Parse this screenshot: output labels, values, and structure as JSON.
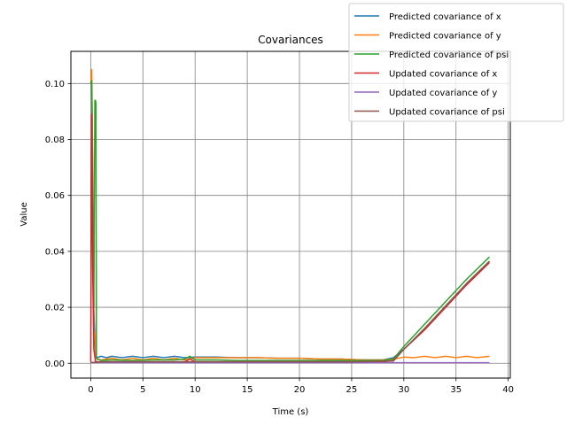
{
  "chart_data": {
    "type": "line",
    "title": "Covariances",
    "xlabel": "Time (s)",
    "ylabel": "Value",
    "xlim": [
      -1.9,
      40.2
    ],
    "ylim": [
      -0.0053,
      0.1115
    ],
    "xticks": [
      0,
      5,
      10,
      15,
      20,
      25,
      30,
      35,
      40
    ],
    "xtick_labels": [
      "0",
      "5",
      "10",
      "15",
      "20",
      "25",
      "30",
      "35",
      "40"
    ],
    "yticks": [
      0.0,
      0.02,
      0.04,
      0.06,
      0.08,
      0.1
    ],
    "ytick_labels": [
      "0.00",
      "0.02",
      "0.04",
      "0.06",
      "0.08",
      "0.10"
    ],
    "grid": true,
    "legend_position": "top-right",
    "series": [
      {
        "name": "Predicted covariance of x",
        "color": "#1f77b4",
        "x": [
          0,
          0.1,
          0.2,
          0.3,
          0.45,
          0.6,
          1.0,
          1.5,
          2.0,
          3.0,
          4.0,
          5.0,
          6.0,
          7.0,
          8.0,
          9.0,
          10.0,
          12.0,
          14.0,
          16.0,
          18.0,
          20.0,
          22.0,
          24.0,
          26.0,
          28.0,
          29.0,
          30.0,
          32.0,
          34.0,
          36.0,
          38.2
        ],
        "y": [
          0.1,
          0.1,
          0.06,
          0.02,
          0.003,
          0.002,
          0.0025,
          0.002,
          0.0025,
          0.002,
          0.0025,
          0.002,
          0.0025,
          0.002,
          0.0025,
          0.002,
          0.0022,
          0.0022,
          0.002,
          0.002,
          0.0018,
          0.0018,
          0.0015,
          0.0015,
          0.0012,
          0.0012,
          0.002,
          0.005,
          0.012,
          0.02,
          0.028,
          0.036
        ]
      },
      {
        "name": "Predicted covariance of y",
        "color": "#ff7f0e",
        "x": [
          0,
          0.1,
          0.2,
          0.3,
          0.4,
          0.5,
          0.6,
          1.0,
          2.0,
          3.0,
          4.0,
          5.0,
          6.0,
          7.0,
          8.0,
          9.0,
          10.0,
          12.0,
          14.0,
          16.0,
          18.0,
          20.0,
          22.0,
          24.0,
          26.0,
          28.0,
          29.5,
          30.0,
          31.0,
          32.0,
          33.0,
          34.0,
          35.0,
          36.0,
          37.0,
          38.2
        ],
        "y": [
          0.1,
          0.105,
          0.07,
          0.01,
          0.011,
          0.002,
          0.0015,
          0.0012,
          0.0018,
          0.0012,
          0.0018,
          0.0012,
          0.0018,
          0.0012,
          0.0018,
          0.0012,
          0.002,
          0.002,
          0.002,
          0.002,
          0.0018,
          0.0018,
          0.0015,
          0.0015,
          0.0012,
          0.0012,
          0.0018,
          0.0022,
          0.002,
          0.0025,
          0.002,
          0.0025,
          0.002,
          0.0025,
          0.002,
          0.0025
        ]
      },
      {
        "name": "Predicted covariance of psi",
        "color": "#2ca02c",
        "x": [
          0,
          0.1,
          0.2,
          0.3,
          0.4,
          0.45,
          0.5,
          0.55,
          0.6,
          1.0,
          2.0,
          4.0,
          6.0,
          8.0,
          9.0,
          9.5,
          10.0,
          12.0,
          14.0,
          16.0,
          18.0,
          20.0,
          22.0,
          24.0,
          26.0,
          28.0,
          29.0,
          30.0,
          32.0,
          34.0,
          36.0,
          38.2
        ],
        "y": [
          0.1,
          0.101,
          0.06,
          0.02,
          0.094,
          0.094,
          0.093,
          0.002,
          0.0015,
          0.001,
          0.0012,
          0.001,
          0.0012,
          0.0012,
          0.0015,
          0.0025,
          0.0012,
          0.0012,
          0.001,
          0.001,
          0.001,
          0.001,
          0.001,
          0.001,
          0.001,
          0.001,
          0.0015,
          0.006,
          0.014,
          0.022,
          0.03,
          0.038
        ]
      },
      {
        "name": "Updated covariance of x",
        "color": "#d62728",
        "x": [
          0,
          0.1,
          0.2,
          0.3,
          0.45,
          0.6,
          1.0,
          2.0,
          4.0,
          6.0,
          8.0,
          9.0,
          9.5,
          10.0,
          12.0,
          14.0,
          16.0,
          18.0,
          20.0,
          22.0,
          24.0,
          26.0,
          28.0,
          29.0,
          30.0,
          32.0,
          34.0,
          36.0,
          38.2
        ],
        "y": [
          0.0005,
          0.089,
          0.03,
          0.005,
          0.0008,
          0.0005,
          0.0005,
          0.0005,
          0.0005,
          0.0005,
          0.0005,
          0.0005,
          0.0015,
          0.0005,
          0.0005,
          0.0005,
          0.0005,
          0.0005,
          0.0005,
          0.0005,
          0.0005,
          0.0005,
          0.0005,
          0.001,
          0.005,
          0.012,
          0.02,
          0.028,
          0.036
        ]
      },
      {
        "name": "Updated covariance of y",
        "color": "#9467bd",
        "x": [
          0,
          1,
          5,
          10,
          15,
          20,
          25,
          30,
          35,
          38.2
        ],
        "y": [
          0.0002,
          0.0002,
          0.0002,
          0.0002,
          0.0002,
          0.0002,
          0.0002,
          0.0002,
          0.0002,
          0.0002
        ]
      },
      {
        "name": "Updated covariance of psi",
        "color": "#8c564b",
        "x": [
          0,
          0.5,
          1.0,
          5,
          10,
          15,
          20,
          25,
          29.0,
          30.0,
          32.0,
          34.0,
          36.0,
          38.2
        ],
        "y": [
          0.0003,
          0.0003,
          0.0005,
          0.0005,
          0.0005,
          0.0005,
          0.0005,
          0.0005,
          0.0008,
          0.005,
          0.0125,
          0.0205,
          0.0285,
          0.0365
        ]
      }
    ]
  }
}
